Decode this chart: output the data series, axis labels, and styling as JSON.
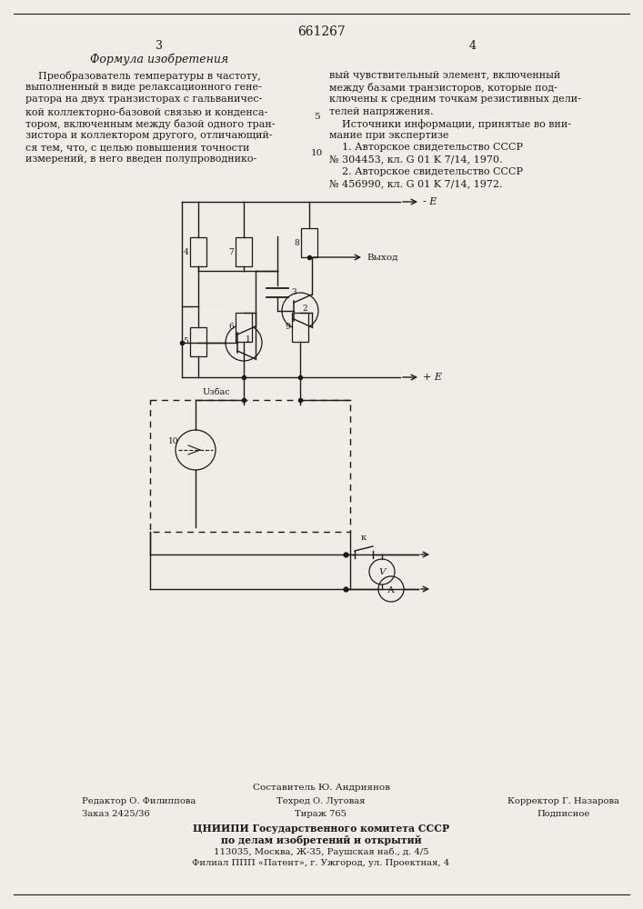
{
  "page_number_center": "661267",
  "page_col_left": "3",
  "page_col_right": "4",
  "title_left": "Формула изобретения",
  "text_left_lines": [
    "    Преобразователь температуры в частоту,",
    "выполненный в виде релаксационного гене-",
    "ратора на двух транзисторах с гальваничес-",
    "кой коллекторно-базовой связью и конденса-",
    "тором, включенным между базой одного тран-",
    "зистора и коллектором другого, отличающий-",
    "ся тем, что, с целью повышения точности",
    "измерений, в него введен полупроводнико-"
  ],
  "line_number_5_row": 4,
  "line_number_10_row": 7,
  "text_right_lines": [
    "вый чувствительный элемент, включенный",
    "между базами транзисторов, которые под-",
    "ключены к средним точкам резистивных дели-",
    "телей напряжения.",
    "    Источники информации, принятые во вни-",
    "мание при экспертизе",
    "    1. Авторское свидетельство СССР",
    "№ 304453, кл. G 01 K 7/14, 1970.",
    "    2. Авторское свидетельство СССР",
    "№ 456990, кл. G 01 K 7/14, 1972."
  ],
  "footer_line1": "Составитель Ю. Андриянов",
  "footer_line2_left": "Редактор О. Филиппова",
  "footer_line2_center": "Техред О. Луговая",
  "footer_line2_right": "Корректор Г. Назарова",
  "footer_line3_left": "Заказ 2425/36",
  "footer_line3_center": "Тираж 765",
  "footer_line3_right": "Подписное",
  "footer_line4": "ЦНИИПИ Государственного комитета СССР",
  "footer_line5": "по делам изобретений и открытий",
  "footer_line6": "113035, Москва, Ж-35, Раушская наб., д. 4/5",
  "footer_line7": "Филиал ППП «Патент», г. Ужгород, ул. Проектная, 4",
  "bg_color": "#f0ede8",
  "text_color": "#1a1a1a",
  "circuit_bg": "white"
}
